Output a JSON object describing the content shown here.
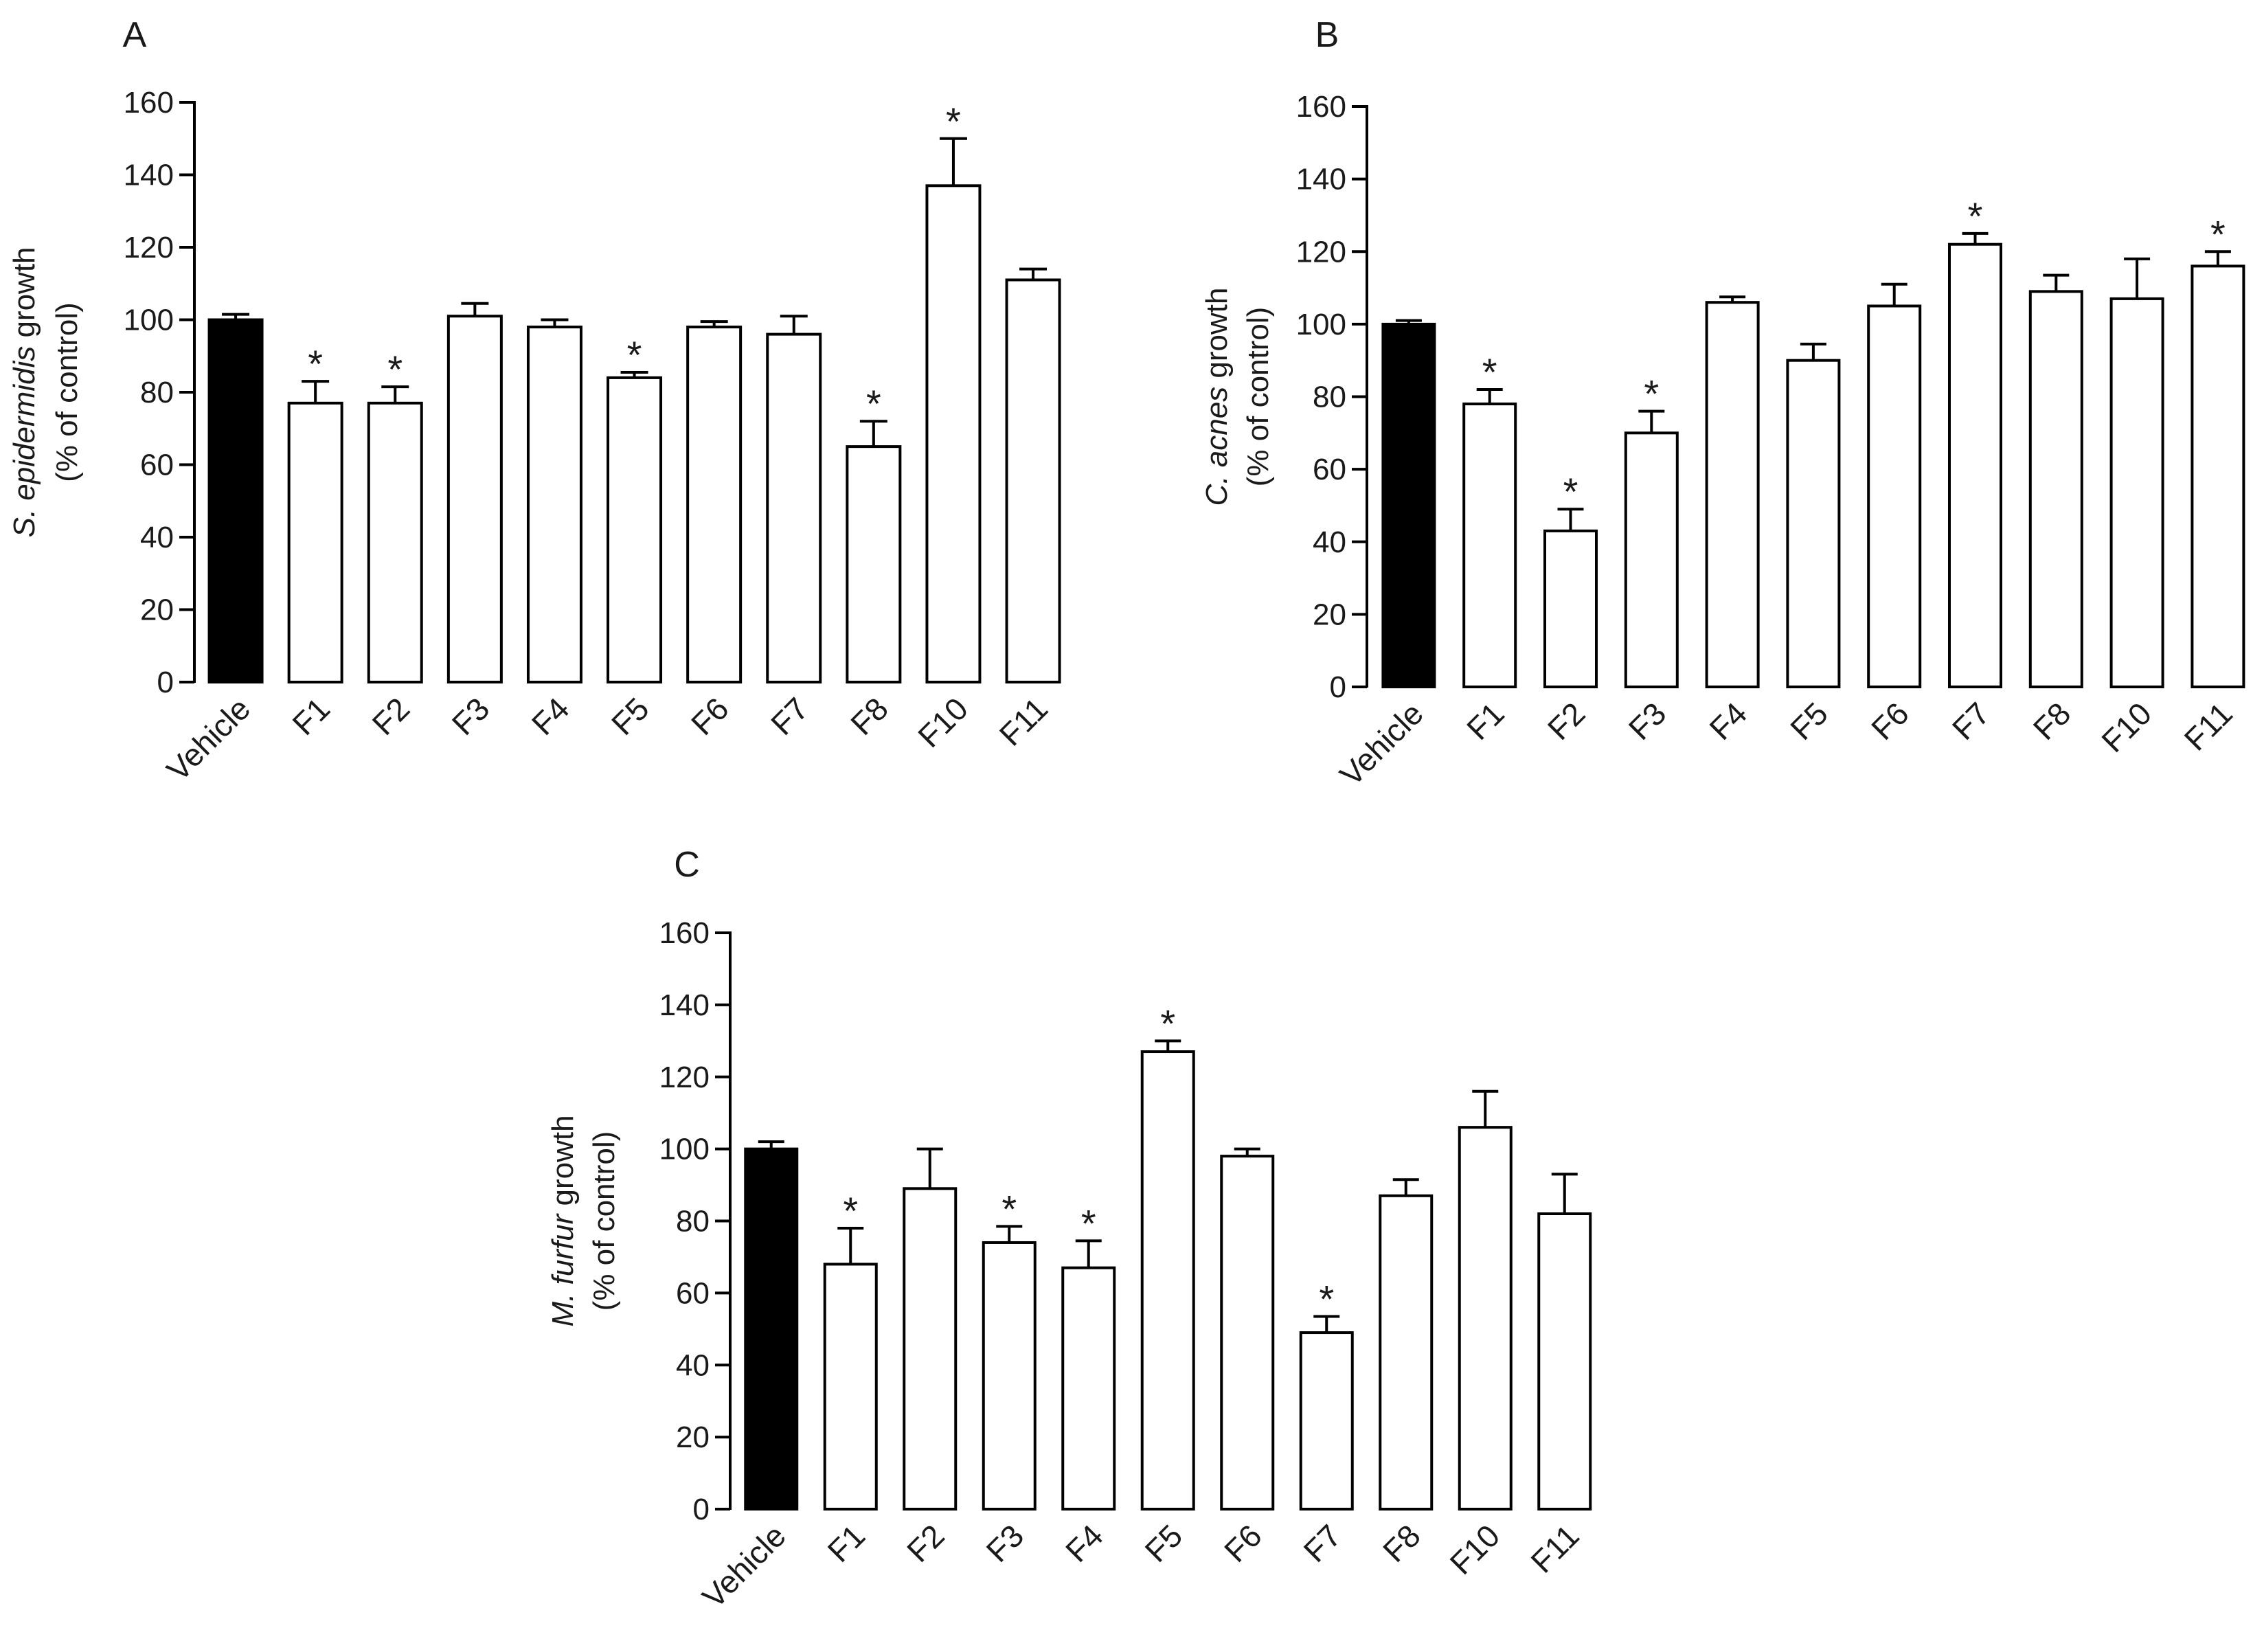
{
  "figure": {
    "background": "#ffffff",
    "bar_fill": "#ffffff",
    "control_fill": "#000000",
    "stroke": "#000000"
  },
  "chart_data": [
    {
      "panel": "A",
      "type": "bar",
      "ylabel_line1_italic": "S. epidermidis",
      "ylabel_line1_rest": " growth",
      "ylabel_line2": "(% of control)",
      "ylim": [
        0,
        160
      ],
      "yticks": [
        "0",
        "20",
        "40",
        "60",
        "80",
        "100",
        "120",
        "140",
        "160"
      ],
      "categories": [
        "Vehicle",
        "F1",
        "F2",
        "F3",
        "F4",
        "F5",
        "F6",
        "F7",
        "F8",
        "F10",
        "F11"
      ],
      "values": [
        100,
        77,
        77,
        101,
        98,
        84,
        98,
        96,
        65,
        137,
        111
      ],
      "errors": [
        1.5,
        6,
        4.5,
        3.5,
        2,
        1.5,
        1.5,
        5,
        7,
        13,
        3
      ],
      "significant": [
        false,
        true,
        true,
        false,
        false,
        true,
        false,
        false,
        true,
        true,
        false
      ],
      "marker": "*"
    },
    {
      "panel": "B",
      "type": "bar",
      "ylabel_line1_italic": "C. acnes",
      "ylabel_line1_rest": " growth",
      "ylabel_line2": "(% of control)",
      "ylim": [
        0,
        160
      ],
      "yticks": [
        "0",
        "20",
        "40",
        "60",
        "80",
        "100",
        "120",
        "140",
        "160"
      ],
      "categories": [
        "Vehicle",
        "F1",
        "F2",
        "F3",
        "F4",
        "F5",
        "F6",
        "F7",
        "F8",
        "F10",
        "F11"
      ],
      "values": [
        100,
        78,
        43,
        70,
        106,
        90,
        105,
        122,
        109,
        107,
        116
      ],
      "errors": [
        1,
        4,
        6,
        6,
        1.5,
        4.5,
        6,
        3,
        4.5,
        11,
        4
      ],
      "significant": [
        false,
        true,
        true,
        true,
        false,
        false,
        false,
        true,
        false,
        false,
        true
      ],
      "marker": "*"
    },
    {
      "panel": "C",
      "type": "bar",
      "ylabel_line1_italic": "M. furfur",
      "ylabel_line1_rest": " growth",
      "ylabel_line2": "(% of control)",
      "ylim": [
        0,
        160
      ],
      "yticks": [
        "0",
        "20",
        "40",
        "60",
        "80",
        "100",
        "120",
        "140",
        "160"
      ],
      "categories": [
        "Vehicle",
        "F1",
        "F2",
        "F3",
        "F4",
        "F5",
        "F6",
        "F7",
        "F8",
        "F10",
        "F11"
      ],
      "values": [
        100,
        68,
        89,
        74,
        67,
        127,
        98,
        49,
        87,
        106,
        82
      ],
      "errors": [
        2,
        10,
        11,
        4.5,
        7.5,
        3,
        2,
        4.5,
        4.5,
        10,
        11
      ],
      "significant": [
        false,
        true,
        false,
        true,
        true,
        true,
        false,
        true,
        false,
        false,
        false
      ],
      "marker": "*"
    }
  ]
}
